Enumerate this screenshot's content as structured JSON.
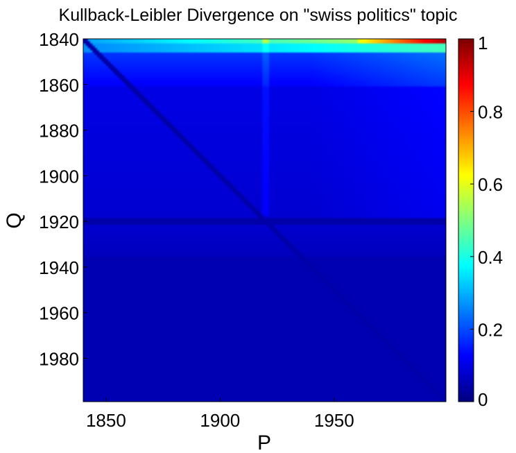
{
  "chart_data": {
    "type": "heatmap",
    "title": "Kullback-Leibler Divergence on \"swiss politics\" topic",
    "xlabel": "P",
    "ylabel": "Q",
    "x_range": [
      1840,
      1999
    ],
    "y_range": [
      1840,
      1999
    ],
    "x_ticks": [
      1850,
      1900,
      1950
    ],
    "y_ticks": [
      1840,
      1860,
      1880,
      1900,
      1920,
      1940,
      1960,
      1980
    ],
    "colormap": "jet",
    "clim": [
      0,
      1
    ],
    "colorbar_ticks": [
      0,
      0.2,
      0.4,
      0.6,
      0.8,
      1
    ],
    "colorbar_tick_labels": [
      "0",
      "0.2",
      "0.4",
      "0.6",
      "0.8",
      "1"
    ],
    "colorbar_position": "right",
    "estimated_values": {
      "row_1840_first_cols": 0.28,
      "row_1840_at_1920": 0.55,
      "row_1840_at_1960": 0.6,
      "row_1840_at_1990": 0.95,
      "rows_1845_1860": 0.18,
      "rows_1860_1915": 0.1,
      "row_1920": 0.04,
      "rows_1930_1999": 0.05,
      "diagonal": 0.0,
      "column_1920_band": 0.2
    }
  }
}
